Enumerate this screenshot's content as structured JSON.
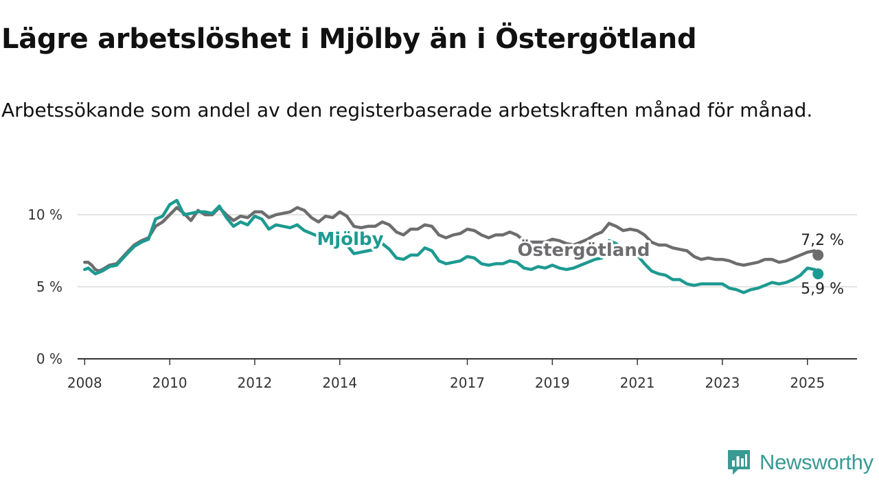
{
  "title": "Lägre arbetslöshet i Mjölby än i Östergötland",
  "subtitle": "Arbetssökande som andel av den registerbaserade arbetskraften månad för månad.",
  "brand": {
    "name": "Newsworthy",
    "color": "#3a9a93",
    "icon": "newsworthy-logo-icon"
  },
  "chart_data": {
    "type": "line",
    "ylim": [
      0,
      11
    ],
    "xlim": [
      "2007-11",
      "2026-03"
    ],
    "y_ticks": [
      {
        "value": 0,
        "label": "0 %"
      },
      {
        "value": 5,
        "label": "5 %"
      },
      {
        "value": 10,
        "label": "10 %"
      }
    ],
    "x_ticks": [
      {
        "date": "2008-01",
        "label": "2008"
      },
      {
        "date": "2010-01",
        "label": "2010"
      },
      {
        "date": "2012-01",
        "label": "2012"
      },
      {
        "date": "2014-01",
        "label": "2014"
      },
      {
        "date": "2017-01",
        "label": "2017"
      },
      {
        "date": "2019-01",
        "label": "2019"
      },
      {
        "date": "2021-01",
        "label": "2021"
      },
      {
        "date": "2023-01",
        "label": "2023"
      },
      {
        "date": "2025-01",
        "label": "2025"
      }
    ],
    "grid": "horizontal",
    "series": [
      {
        "name": "Östergötland",
        "color": "#6d6d70",
        "end_label": "7,2 %",
        "points": [
          [
            "2008-01",
            6.7
          ],
          [
            "2008-02",
            6.7
          ],
          [
            "2008-03",
            6.5
          ],
          [
            "2008-04",
            6.2
          ],
          [
            "2008-05",
            6.1
          ],
          [
            "2008-06",
            6.2
          ],
          [
            "2008-08",
            6.5
          ],
          [
            "2008-10",
            6.6
          ],
          [
            "2009-01",
            7.4
          ],
          [
            "2009-03",
            7.9
          ],
          [
            "2009-05",
            8.2
          ],
          [
            "2009-07",
            8.4
          ],
          [
            "2009-09",
            9.2
          ],
          [
            "2009-11",
            9.5
          ],
          [
            "2010-01",
            10.0
          ],
          [
            "2010-03",
            10.5
          ],
          [
            "2010-05",
            10.1
          ],
          [
            "2010-07",
            9.6
          ],
          [
            "2010-09",
            10.3
          ],
          [
            "2010-11",
            10.0
          ],
          [
            "2011-01",
            10.0
          ],
          [
            "2011-03",
            10.5
          ],
          [
            "2011-05",
            10.0
          ],
          [
            "2011-07",
            9.6
          ],
          [
            "2011-09",
            9.9
          ],
          [
            "2011-11",
            9.8
          ],
          [
            "2012-01",
            10.2
          ],
          [
            "2012-03",
            10.2
          ],
          [
            "2012-05",
            9.8
          ],
          [
            "2012-07",
            10.0
          ],
          [
            "2012-09",
            10.1
          ],
          [
            "2012-11",
            10.2
          ],
          [
            "2013-01",
            10.5
          ],
          [
            "2013-03",
            10.3
          ],
          [
            "2013-05",
            9.8
          ],
          [
            "2013-07",
            9.5
          ],
          [
            "2013-09",
            9.9
          ],
          [
            "2013-11",
            9.8
          ],
          [
            "2014-01",
            10.2
          ],
          [
            "2014-03",
            9.9
          ],
          [
            "2014-05",
            9.2
          ],
          [
            "2014-07",
            9.1
          ],
          [
            "2014-09",
            9.2
          ],
          [
            "2014-11",
            9.2
          ],
          [
            "2015-01",
            9.5
          ],
          [
            "2015-03",
            9.3
          ],
          [
            "2015-05",
            8.8
          ],
          [
            "2015-07",
            8.6
          ],
          [
            "2015-09",
            9.0
          ],
          [
            "2015-11",
            9.0
          ],
          [
            "2016-01",
            9.3
          ],
          [
            "2016-03",
            9.2
          ],
          [
            "2016-05",
            8.6
          ],
          [
            "2016-07",
            8.4
          ],
          [
            "2016-09",
            8.6
          ],
          [
            "2016-11",
            8.7
          ],
          [
            "2017-01",
            9.0
          ],
          [
            "2017-03",
            8.9
          ],
          [
            "2017-05",
            8.6
          ],
          [
            "2017-07",
            8.4
          ],
          [
            "2017-09",
            8.6
          ],
          [
            "2017-11",
            8.6
          ],
          [
            "2018-01",
            8.8
          ],
          [
            "2018-03",
            8.6
          ],
          [
            "2018-05",
            8.2
          ],
          [
            "2018-07",
            8.1
          ],
          [
            "2018-09",
            8.1
          ],
          [
            "2018-11",
            8.1
          ],
          [
            "2019-01",
            8.3
          ],
          [
            "2019-03",
            8.2
          ],
          [
            "2019-05",
            8.0
          ],
          [
            "2019-07",
            7.9
          ],
          [
            "2019-09",
            8.1
          ],
          [
            "2019-11",
            8.3
          ],
          [
            "2020-01",
            8.6
          ],
          [
            "2020-03",
            8.8
          ],
          [
            "2020-05",
            9.4
          ],
          [
            "2020-07",
            9.2
          ],
          [
            "2020-09",
            8.9
          ],
          [
            "2020-11",
            9.0
          ],
          [
            "2021-01",
            8.9
          ],
          [
            "2021-03",
            8.6
          ],
          [
            "2021-05",
            8.1
          ],
          [
            "2021-07",
            7.9
          ],
          [
            "2021-09",
            7.9
          ],
          [
            "2021-11",
            7.7
          ],
          [
            "2022-01",
            7.6
          ],
          [
            "2022-03",
            7.5
          ],
          [
            "2022-05",
            7.1
          ],
          [
            "2022-07",
            6.9
          ],
          [
            "2022-09",
            7.0
          ],
          [
            "2022-11",
            6.9
          ],
          [
            "2023-01",
            6.9
          ],
          [
            "2023-03",
            6.8
          ],
          [
            "2023-05",
            6.6
          ],
          [
            "2023-07",
            6.5
          ],
          [
            "2023-09",
            6.6
          ],
          [
            "2023-11",
            6.7
          ],
          [
            "2024-01",
            6.9
          ],
          [
            "2024-03",
            6.9
          ],
          [
            "2024-05",
            6.7
          ],
          [
            "2024-07",
            6.8
          ],
          [
            "2024-09",
            7.0
          ],
          [
            "2024-11",
            7.2
          ],
          [
            "2025-01",
            7.4
          ],
          [
            "2025-03",
            7.5
          ],
          [
            "2025-04",
            7.2
          ]
        ]
      },
      {
        "name": "Mjölby",
        "color": "#1d9a91",
        "end_label": "5,9 %",
        "points": [
          [
            "2008-01",
            6.2
          ],
          [
            "2008-02",
            6.3
          ],
          [
            "2008-03",
            6.1
          ],
          [
            "2008-04",
            5.9
          ],
          [
            "2008-05",
            6.0
          ],
          [
            "2008-06",
            6.1
          ],
          [
            "2008-08",
            6.4
          ],
          [
            "2008-10",
            6.5
          ],
          [
            "2009-01",
            7.3
          ],
          [
            "2009-03",
            7.8
          ],
          [
            "2009-05",
            8.1
          ],
          [
            "2009-07",
            8.3
          ],
          [
            "2009-09",
            9.7
          ],
          [
            "2009-11",
            9.9
          ],
          [
            "2010-01",
            10.7
          ],
          [
            "2010-03",
            11.0
          ],
          [
            "2010-05",
            10.0
          ],
          [
            "2010-07",
            10.1
          ],
          [
            "2010-09",
            10.2
          ],
          [
            "2010-11",
            10.2
          ],
          [
            "2011-01",
            10.1
          ],
          [
            "2011-03",
            10.6
          ],
          [
            "2011-05",
            9.8
          ],
          [
            "2011-07",
            9.2
          ],
          [
            "2011-09",
            9.5
          ],
          [
            "2011-11",
            9.3
          ],
          [
            "2012-01",
            9.9
          ],
          [
            "2012-03",
            9.7
          ],
          [
            "2012-05",
            9.0
          ],
          [
            "2012-07",
            9.3
          ],
          [
            "2012-09",
            9.2
          ],
          [
            "2012-11",
            9.1
          ],
          [
            "2013-01",
            9.3
          ],
          [
            "2013-03",
            8.9
          ],
          [
            "2013-05",
            8.7
          ],
          [
            "2013-07",
            8.5
          ],
          [
            "2013-09",
            8.7
          ],
          [
            "2013-11",
            8.4
          ],
          [
            "2014-01",
            8.2
          ],
          [
            "2014-03",
            7.9
          ],
          [
            "2014-05",
            7.3
          ],
          [
            "2014-07",
            7.4
          ],
          [
            "2014-09",
            7.5
          ],
          [
            "2014-11",
            7.6
          ],
          [
            "2015-01",
            8.0
          ],
          [
            "2015-03",
            7.6
          ],
          [
            "2015-05",
            7.0
          ],
          [
            "2015-07",
            6.9
          ],
          [
            "2015-09",
            7.2
          ],
          [
            "2015-11",
            7.2
          ],
          [
            "2016-01",
            7.7
          ],
          [
            "2016-03",
            7.5
          ],
          [
            "2016-05",
            6.8
          ],
          [
            "2016-07",
            6.6
          ],
          [
            "2016-09",
            6.7
          ],
          [
            "2016-11",
            6.8
          ],
          [
            "2017-01",
            7.1
          ],
          [
            "2017-03",
            7.0
          ],
          [
            "2017-05",
            6.6
          ],
          [
            "2017-07",
            6.5
          ],
          [
            "2017-09",
            6.6
          ],
          [
            "2017-11",
            6.6
          ],
          [
            "2018-01",
            6.8
          ],
          [
            "2018-03",
            6.7
          ],
          [
            "2018-05",
            6.3
          ],
          [
            "2018-07",
            6.2
          ],
          [
            "2018-09",
            6.4
          ],
          [
            "2018-11",
            6.3
          ],
          [
            "2019-01",
            6.5
          ],
          [
            "2019-03",
            6.3
          ],
          [
            "2019-05",
            6.2
          ],
          [
            "2019-07",
            6.3
          ],
          [
            "2019-09",
            6.5
          ],
          [
            "2019-11",
            6.7
          ],
          [
            "2020-01",
            6.9
          ],
          [
            "2020-03",
            7.0
          ],
          [
            "2020-05",
            8.2
          ],
          [
            "2020-07",
            8.0
          ],
          [
            "2020-09",
            7.6
          ],
          [
            "2020-11",
            7.6
          ],
          [
            "2021-01",
            7.2
          ],
          [
            "2021-03",
            6.6
          ],
          [
            "2021-05",
            6.1
          ],
          [
            "2021-07",
            5.9
          ],
          [
            "2021-09",
            5.8
          ],
          [
            "2021-11",
            5.5
          ],
          [
            "2022-01",
            5.5
          ],
          [
            "2022-03",
            5.2
          ],
          [
            "2022-05",
            5.1
          ],
          [
            "2022-07",
            5.2
          ],
          [
            "2022-09",
            5.2
          ],
          [
            "2022-11",
            5.2
          ],
          [
            "2023-01",
            5.2
          ],
          [
            "2023-03",
            4.9
          ],
          [
            "2023-05",
            4.8
          ],
          [
            "2023-07",
            4.6
          ],
          [
            "2023-09",
            4.8
          ],
          [
            "2023-11",
            4.9
          ],
          [
            "2024-01",
            5.1
          ],
          [
            "2024-03",
            5.3
          ],
          [
            "2024-05",
            5.2
          ],
          [
            "2024-07",
            5.3
          ],
          [
            "2024-09",
            5.5
          ],
          [
            "2024-11",
            5.8
          ],
          [
            "2025-01",
            6.3
          ],
          [
            "2025-03",
            6.2
          ],
          [
            "2025-04",
            5.9
          ]
        ]
      }
    ]
  }
}
